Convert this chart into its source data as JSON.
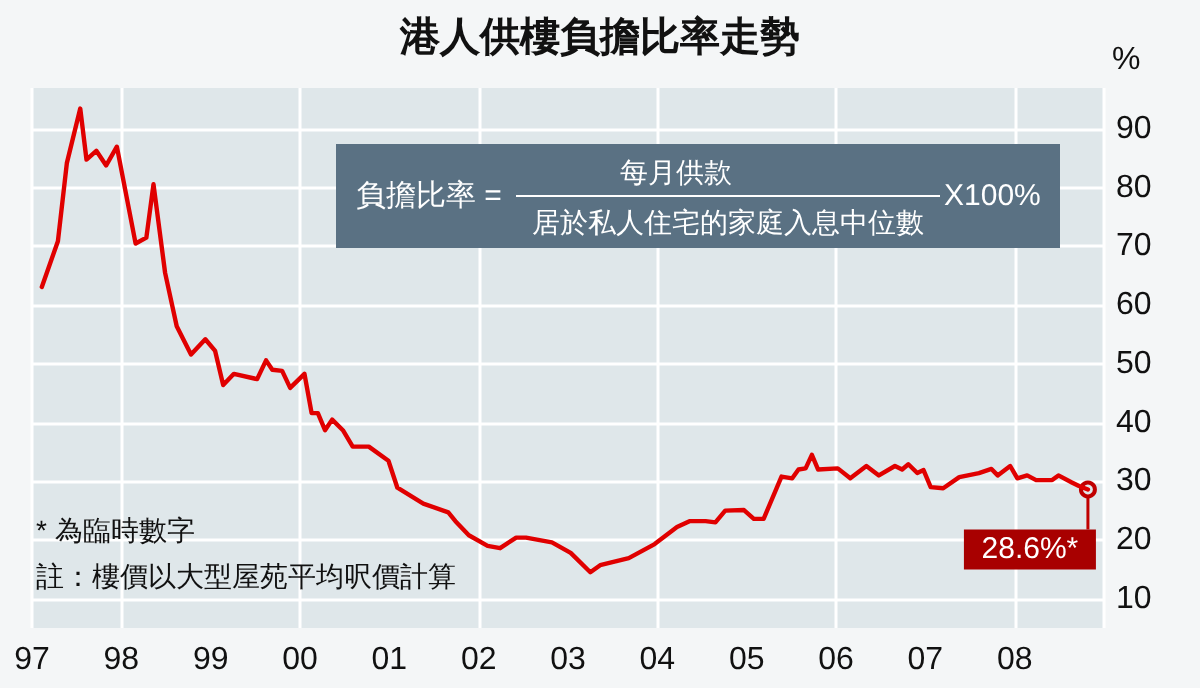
{
  "chart_data": {
    "type": "line",
    "title": "港人供樓負擔比率走勢",
    "ylabel": "%",
    "x": [
      1997.11,
      1997.29,
      1997.39,
      1997.54,
      1997.61,
      1997.72,
      1997.83,
      1997.95,
      1998.16,
      1998.28,
      1998.36,
      1998.49,
      1998.62,
      1998.78,
      1998.94,
      1999.05,
      1999.14,
      1999.26,
      1999.52,
      1999.62,
      1999.69,
      1999.8,
      1999.89,
      2000.05,
      2000.13,
      2000.2,
      2000.28,
      2000.36,
      2000.48,
      2000.59,
      2000.77,
      2000.99,
      2001.09,
      2001.38,
      2001.66,
      2001.74,
      2001.89,
      2002.1,
      2002.24,
      2002.42,
      2002.53,
      2002.82,
      2003.03,
      2003.25,
      2003.36,
      2003.68,
      2003.97,
      2004.22,
      2004.36,
      2004.54,
      2004.65,
      2004.76,
      2004.97,
      2005.08,
      2005.19,
      2005.39,
      2005.51,
      2005.58,
      2005.66,
      2005.73,
      2005.8,
      2006.02,
      2006.16,
      2006.34,
      2006.48,
      2006.66,
      2006.74,
      2006.81,
      2006.91,
      2006.98,
      2007.06,
      2007.2,
      2007.38,
      2007.6,
      2007.74,
      2007.81,
      2007.95,
      2008.03,
      2008.14,
      2008.24,
      2008.42,
      2008.49,
      2008.64,
      2008.72,
      2008.82
    ],
    "series": [
      {
        "color": "#e00000",
        "values": [
          63.1,
          70.9,
          84.2,
          93.5,
          84.8,
          86.3,
          83.8,
          87,
          70.5,
          71.5,
          80.6,
          65.5,
          56.4,
          51.6,
          54.2,
          52.2,
          46.4,
          48.3,
          47.4,
          50.6,
          49,
          48.8,
          45.9,
          48.3,
          41.6,
          41.6,
          38.7,
          40.5,
          38.7,
          35.9,
          35.9,
          33.5,
          28.9,
          26.2,
          24.7,
          23.2,
          20.8,
          19,
          18.6,
          20.4,
          20.4,
          19.6,
          17.8,
          14.5,
          15.7,
          16.9,
          19.3,
          22.2,
          23.2,
          23.2,
          23,
          25,
          25.1,
          23.6,
          23.6,
          30.8,
          30.5,
          32,
          32.2,
          34.5,
          32,
          32.2,
          30.5,
          32.6,
          31,
          32.6,
          32,
          32.9,
          31.4,
          31.9,
          29,
          28.8,
          30.7,
          31.4,
          32.1,
          31,
          32.6,
          30.5,
          31,
          30.2,
          30.2,
          31,
          29.8,
          29.2,
          28.6
        ]
      }
    ],
    "xlim": [
      1997,
      2009
    ],
    "xticks": [
      {
        "value": 1997,
        "label": "97"
      },
      {
        "value": 1998,
        "label": "98"
      },
      {
        "value": 1999,
        "label": "99"
      },
      {
        "value": 2000,
        "label": "00"
      },
      {
        "value": 2001,
        "label": "01"
      },
      {
        "value": 2002,
        "label": "02"
      },
      {
        "value": 2003,
        "label": "03"
      },
      {
        "value": 2004,
        "label": "04"
      },
      {
        "value": 2005,
        "label": "05"
      },
      {
        "value": 2006,
        "label": "06"
      },
      {
        "value": 2007,
        "label": "07"
      },
      {
        "value": 2008,
        "label": "08"
      }
    ],
    "ylim": [
      5,
      97
    ],
    "yticks": [
      10,
      20,
      30,
      40,
      50,
      60,
      70,
      80,
      90
    ],
    "grid": true,
    "marker": "none",
    "line_style": "solid",
    "annotations": [
      "* 為臨時數字",
      "註：樓價以大型屋苑平均呎價計算",
      "負擔比率 =",
      "每月供款",
      "居於私人住宅的家庭入息中位數",
      "X100%",
      {
        "text": "28.6%*",
        "x": 2008.82,
        "y": 28.6
      }
    ]
  }
}
